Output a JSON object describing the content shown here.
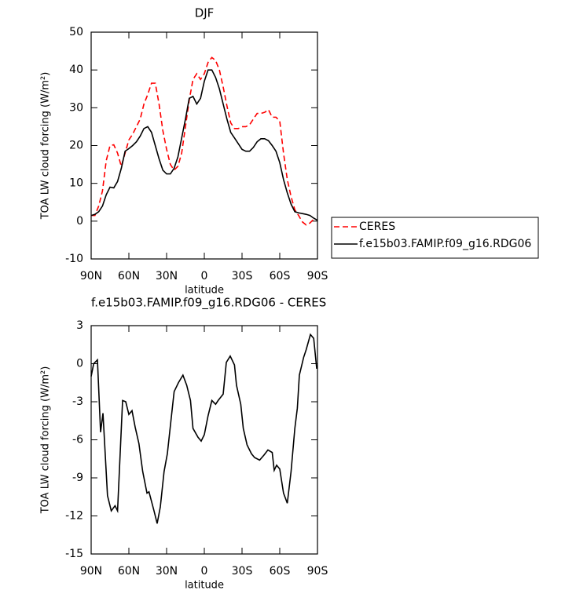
{
  "chart_data": [
    {
      "type": "line",
      "title": "DJF",
      "xlabel": "latitude",
      "ylabel": "TOA LW cloud forcing (W/m²)",
      "xlim": [
        90,
        -90
      ],
      "ylim": [
        -10,
        50
      ],
      "xticks": [
        {
          "value": 90,
          "label": "90N"
        },
        {
          "value": 60,
          "label": "60N"
        },
        {
          "value": 30,
          "label": "30N"
        },
        0,
        {
          "value": -30,
          "label": "30S"
        },
        {
          "value": -60,
          "label": "60S"
        },
        {
          "value": -90,
          "label": "90S"
        }
      ],
      "yticks": [
        -10,
        0,
        10,
        20,
        30,
        40,
        50
      ],
      "legend": "right",
      "x": [
        90,
        87,
        84,
        81,
        78,
        75,
        72,
        69,
        66,
        63,
        60,
        57,
        54,
        51,
        48,
        45,
        42,
        39,
        36,
        33,
        30,
        27,
        24,
        21,
        18,
        15,
        12,
        9,
        6,
        3,
        0,
        -3,
        -6,
        -9,
        -12,
        -15,
        -18,
        -21,
        -24,
        -27,
        -30,
        -33,
        -36,
        -39,
        -42,
        -45,
        -48,
        -51,
        -54,
        -57,
        -60,
        -63,
        -66,
        -69,
        -72,
        -75,
        -78,
        -81,
        -84,
        -87,
        -90
      ],
      "series": [
        {
          "name": "CERES",
          "color": "#ff0000",
          "dashed": true,
          "values": [
            1.5,
            1.5,
            4,
            8,
            16,
            20,
            20.2,
            18,
            14.5,
            18,
            21.5,
            23,
            25,
            27,
            31,
            33.5,
            36.5,
            36.5,
            31,
            24,
            19,
            15,
            13.5,
            14.5,
            18,
            25,
            32,
            37.5,
            39,
            37.5,
            39,
            42,
            43.3,
            42.5,
            40,
            35.5,
            30.5,
            26,
            24.5,
            24.5,
            25,
            25,
            25.5,
            27,
            28.5,
            28.5,
            28.8,
            29.5,
            27.5,
            27.5,
            26.5,
            18,
            11,
            6.5,
            3,
            1.5,
            -0.2,
            -1,
            -0.5,
            0.5,
            null
          ]
        },
        {
          "name": "f.e15b03.FAMIP.f09_g16.RDG06",
          "color": "#000000",
          "dashed": false,
          "values": [
            1.5,
            1.8,
            2.5,
            4,
            7,
            9,
            8.8,
            10.5,
            14,
            18.5,
            19.2,
            20,
            21,
            22.5,
            24.5,
            25,
            23.5,
            20,
            16.5,
            13.5,
            12.5,
            12.5,
            14,
            17,
            22,
            27,
            32.5,
            33,
            31,
            32.5,
            37,
            40,
            40,
            38,
            35,
            31,
            27,
            23.5,
            22,
            20.5,
            19,
            18.5,
            18.5,
            19.5,
            21,
            21.8,
            21.8,
            21.3,
            20,
            18.5,
            15.5,
            11,
            7.5,
            4.5,
            2.5,
            2.2,
            2,
            1.8,
            1.5,
            0.8,
            0.2
          ]
        }
      ]
    },
    {
      "type": "line",
      "title": "f.e15b03.FAMIP.f09_g16.RDG06 - CERES",
      "xlabel": "latitude",
      "ylabel": "TOA LW cloud forcing (W/m²)",
      "xlim": [
        90,
        -90
      ],
      "ylim": [
        -15,
        3
      ],
      "xticks": [
        {
          "value": 90,
          "label": "90N"
        },
        {
          "value": 60,
          "label": "60N"
        },
        {
          "value": 30,
          "label": "30N"
        },
        0,
        {
          "value": -30,
          "label": "30S"
        },
        {
          "value": -60,
          "label": "60S"
        },
        {
          "value": -90,
          "label": "90S"
        }
      ],
      "yticks": [
        -15,
        -12,
        -9,
        -6,
        -3,
        0,
        3
      ],
      "color": "#000000",
      "x": [
        90,
        88,
        85,
        82.5,
        80.6,
        77,
        74,
        71,
        69,
        65,
        62.5,
        60,
        57.5,
        55,
        52,
        49,
        45.6,
        44,
        40,
        37.5,
        35,
        32,
        29.4,
        26,
        24,
        20.6,
        17,
        14,
        11,
        9,
        5,
        2.5,
        0,
        -3,
        -6,
        -9,
        -11,
        -15,
        -17.5,
        -20.6,
        -24,
        -25.6,
        -29,
        -31,
        -34,
        -37.5,
        -40,
        -44,
        -47.5,
        -50.6,
        -54,
        -55.6,
        -57.5,
        -60,
        -63,
        -66,
        -69,
        -72,
        -74,
        -75.6,
        -79,
        -81,
        -84.4,
        -87,
        -89.4
      ],
      "values": [
        -1,
        0,
        0.3,
        -5.4,
        -3.9,
        -10.4,
        -11.6,
        -11.2,
        -11.6,
        -2.9,
        -3,
        -4,
        -3.7,
        -5,
        -6.3,
        -8.5,
        -10.2,
        -10.1,
        -11.6,
        -12.6,
        -11.3,
        -8.5,
        -7.1,
        -4,
        -2.2,
        -1.5,
        -0.9,
        -1.7,
        -2.9,
        -5.1,
        -5.8,
        -6.1,
        -5.6,
        -4.1,
        -2.9,
        -3.2,
        -2.9,
        -2.4,
        0.1,
        0.6,
        -0.1,
        -1.7,
        -3.2,
        -5.1,
        -6.4,
        -7.1,
        -7.4,
        -7.6,
        -7.2,
        -6.8,
        -7,
        -8.4,
        -8,
        -8.3,
        -10.2,
        -11,
        -8.5,
        -5.1,
        -3.5,
        -0.9,
        0.5,
        1.1,
        2.3,
        2,
        -0.4
      ]
    }
  ]
}
